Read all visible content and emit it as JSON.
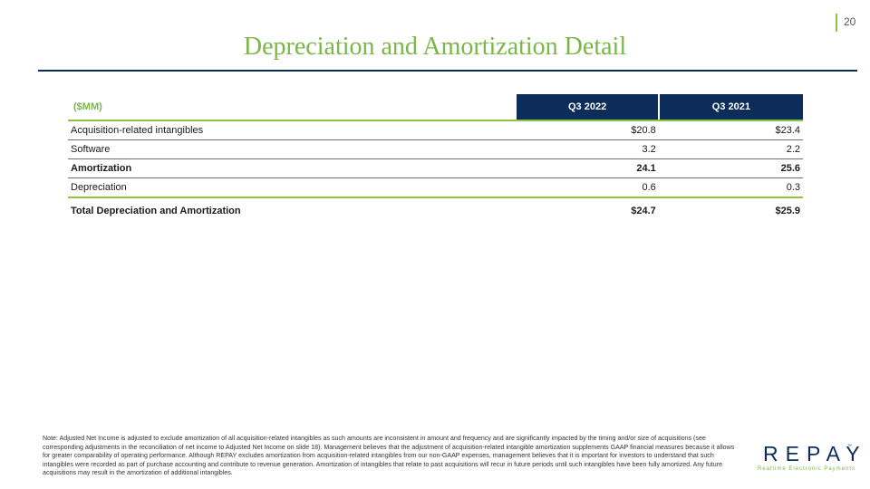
{
  "page_number": "20",
  "title": "Depreciation and Amortization Detail",
  "table": {
    "header_label": "($MM)",
    "columns": [
      "Q3 2022",
      "Q3 2021"
    ],
    "rows": [
      {
        "label": "Acquisition-related intangibles",
        "values": [
          "$20.8",
          "$23.4"
        ]
      },
      {
        "label": "Software",
        "values": [
          "3.2",
          "2.2"
        ]
      },
      {
        "label": "Amortization",
        "values": [
          "24.1",
          "25.6"
        ]
      },
      {
        "label": "Depreciation",
        "values": [
          "0.6",
          "0.3"
        ]
      },
      {
        "label": "Total Depreciation and Amortization",
        "values": [
          "$24.7",
          "$25.9"
        ]
      }
    ]
  },
  "note": "Note: Adjusted Net Income is adjusted to exclude amortization of all acquisition-related intangibles as such amounts are inconsistent in amount and frequency and are significantly impacted by the timing and/or size of acquisitions (see corresponding adjustments in the reconciliation of net income to Adjusted Net Income on slide 18). Management believes that the adjustment of acquisition-related intangible amortization supplements GAAP financial measures because it allows for greater comparability of operating performance. Although REPAY excludes amortization from acquisition-related intangibles from our non-GAAP expenses, management believes that it is important for investors to understand that such intangibles were recorded as part of purchase accounting and contribute to revenue generation. Amortization of intangibles that relate to past acquisitions will recur in future periods until such intangibles have been fully amortized. Any future acquisitions may result in the amortization of additional intangibles.",
  "logo": {
    "word": "REPAY",
    "tagline": "Realtime Electronic Payments",
    "tm": "™",
    "brand_navy": "#0c2d5a",
    "brand_green": "#7ab648"
  }
}
